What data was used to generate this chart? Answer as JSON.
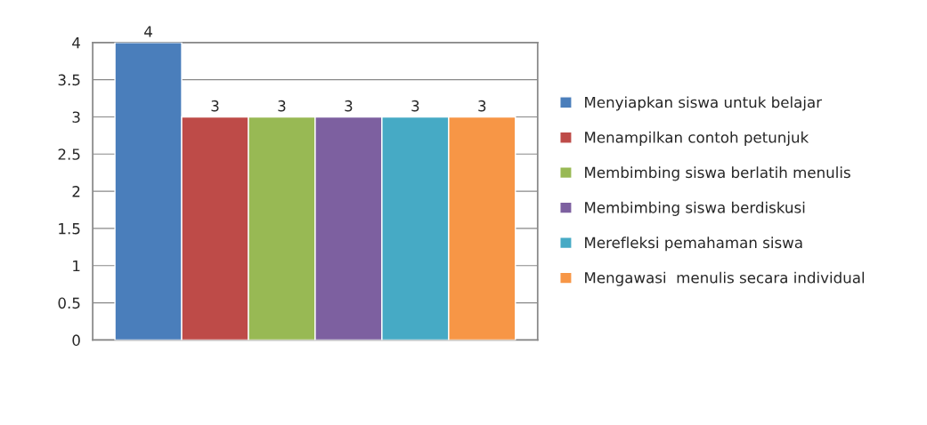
{
  "chart_data": {
    "type": "bar",
    "categories": [
      null
    ],
    "series": [
      {
        "name": "Menyiapkan siswa untuk belajar",
        "color": "#4a7ebb",
        "values": [
          4
        ]
      },
      {
        "name": "Menampilkan contoh petunjuk",
        "color": "#be4b48",
        "values": [
          3
        ]
      },
      {
        "name": "Membimbing siswa berlatih menulis",
        "color": "#98b954",
        "values": [
          3
        ]
      },
      {
        "name": "Membimbing siswa berdiskusi",
        "color": "#7d60a0",
        "values": [
          3
        ]
      },
      {
        "name": "Merefleksi pemahaman siswa",
        "color": "#46aac5",
        "values": [
          3
        ]
      },
      {
        "name": "Mengawasi  menulis secara individual",
        "color": "#f79646",
        "values": [
          3
        ]
      }
    ],
    "ylim": [
      0,
      4
    ],
    "yticks": [
      0,
      0.5,
      1,
      1.5,
      2,
      2.5,
      3,
      3.5,
      4
    ],
    "grid": "y",
    "legend": "right",
    "data_labels": true
  }
}
